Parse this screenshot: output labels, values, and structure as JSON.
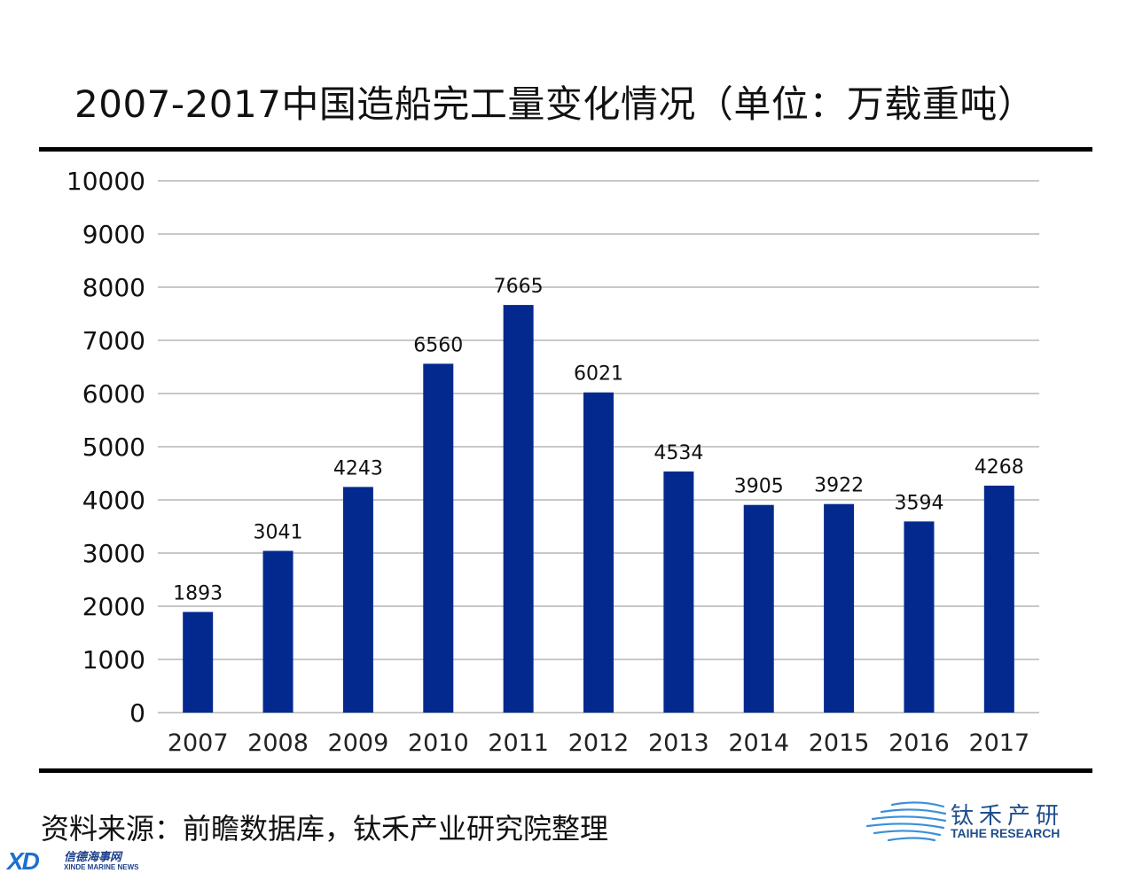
{
  "chart_data": {
    "type": "bar",
    "title": "2007-2017中国造船完工量变化情况（单位：万载重吨）",
    "categories": [
      "2007",
      "2008",
      "2009",
      "2010",
      "2011",
      "2012",
      "2013",
      "2014",
      "2015",
      "2016",
      "2017"
    ],
    "values": [
      1893,
      3041,
      4243,
      6560,
      7665,
      6021,
      4534,
      3905,
      3922,
      3594,
      4268
    ],
    "ylim": [
      0,
      10000
    ],
    "yticks": [
      0,
      1000,
      2000,
      3000,
      4000,
      5000,
      6000,
      7000,
      8000,
      9000,
      10000
    ],
    "xlabel": "",
    "ylabel": "",
    "grid": true,
    "bar_color": "#03298e",
    "grid_color": "#c8c8c8"
  },
  "footer": {
    "source": "资料来源：前瞻数据库，钛禾产业研究院整理"
  },
  "logos": {
    "taihe_cn": "钛禾产研",
    "taihe_en": "TAIHE RESEARCH",
    "xd_mark": "XD",
    "xd_cn": "信德海事网",
    "xd_en": "XINDE MARINE NEWS"
  }
}
